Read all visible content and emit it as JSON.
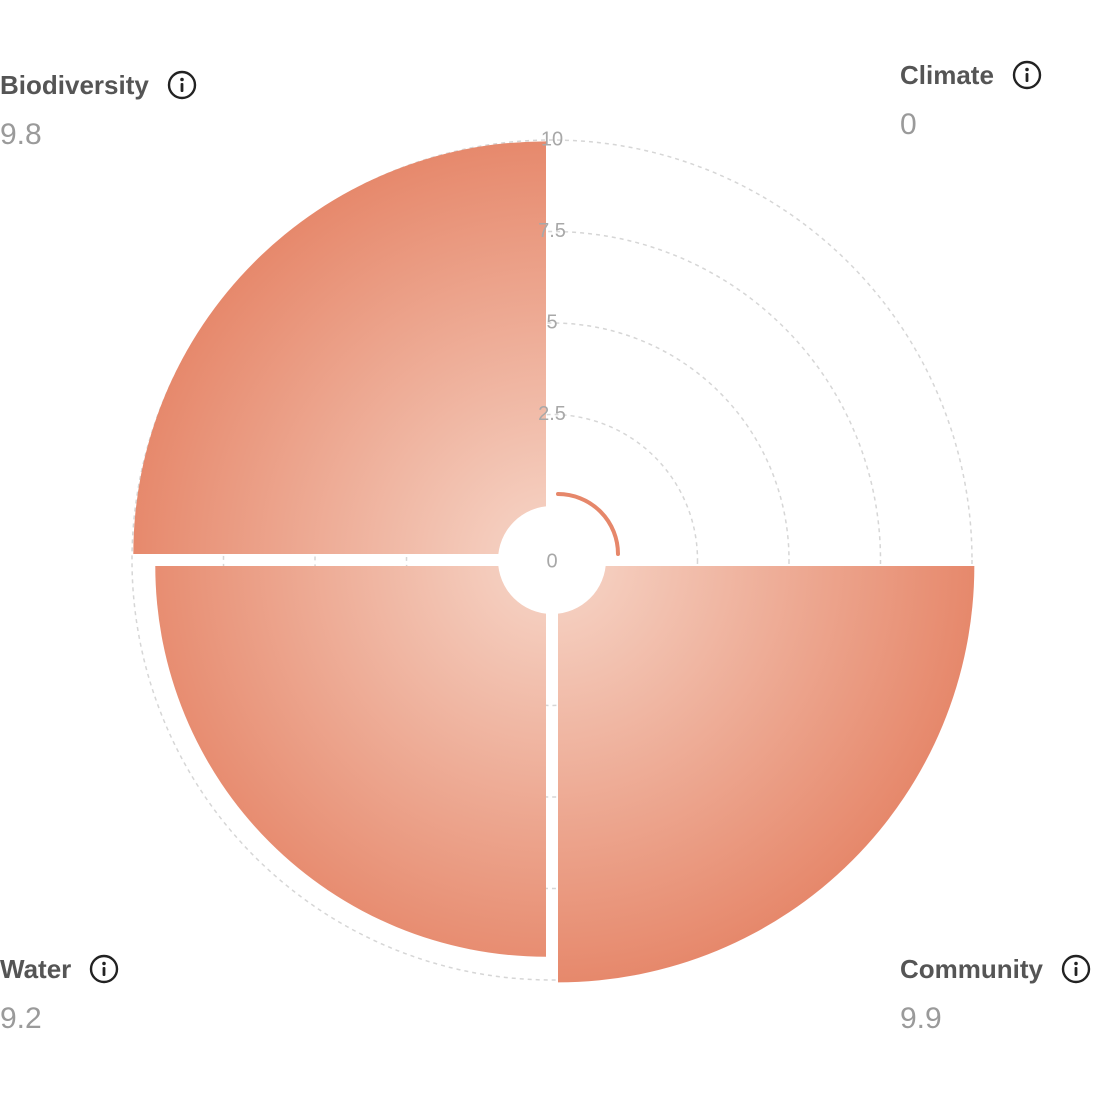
{
  "chart_data": {
    "type": "polar-bar",
    "rmax": 10,
    "ticks": [
      "2.5",
      "5",
      "7.5",
      "10"
    ],
    "tick_values": [
      2.5,
      5,
      7.5,
      10
    ],
    "center_label": "0",
    "segments": [
      {
        "name": "Climate",
        "value": 0,
        "value_label": "0",
        "quadrant": "top-right"
      },
      {
        "name": "Community",
        "value": 9.9,
        "value_label": "9.9",
        "quadrant": "bottom-right"
      },
      {
        "name": "Water",
        "value": 9.2,
        "value_label": "9.2",
        "quadrant": "bottom-left"
      },
      {
        "name": "Biodiversity",
        "value": 9.8,
        "value_label": "9.8",
        "quadrant": "top-left"
      }
    ],
    "colors": {
      "inner": "#f5cfc0",
      "outer": "#e6876a",
      "grid": "#d6d6d6"
    }
  }
}
